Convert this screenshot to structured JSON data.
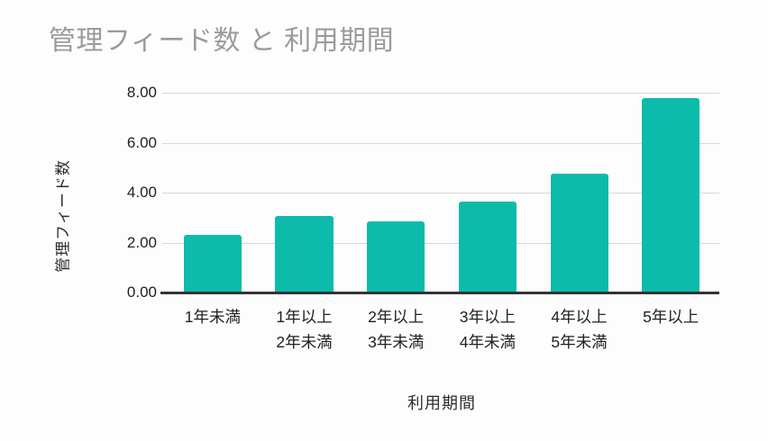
{
  "chart_data": {
    "type": "bar",
    "title": "管理フィード数 と 利用期間",
    "xlabel": "利用期間",
    "ylabel": "管理フィード数",
    "categories": [
      "1年未満",
      "1年以上2年未満",
      "2年以上3年未満",
      "3年以上4年未満",
      "4年以上5年未満",
      "5年以上"
    ],
    "category_lines": [
      [
        "1年未満"
      ],
      [
        "1年以上",
        "2年未満"
      ],
      [
        "2年以上",
        "3年未満"
      ],
      [
        "3年以上",
        "4年未満"
      ],
      [
        "4年以上",
        "5年未満"
      ],
      [
        "5年以上"
      ]
    ],
    "values": [
      2.3,
      3.05,
      2.85,
      3.65,
      4.75,
      7.8
    ],
    "ylim": [
      0,
      8
    ],
    "yticks": [
      "0.00",
      "2.00",
      "4.00",
      "6.00",
      "8.00"
    ],
    "grid": true,
    "legend": false
  },
  "colors": {
    "background": "#fdfdfd",
    "bar": "#0cbbaa",
    "title": "#9b9b9b",
    "gridline": "#d7d7d7",
    "axis_line": "#333333",
    "tick_label": "#212121",
    "axis_title": "#2d2d2d"
  }
}
